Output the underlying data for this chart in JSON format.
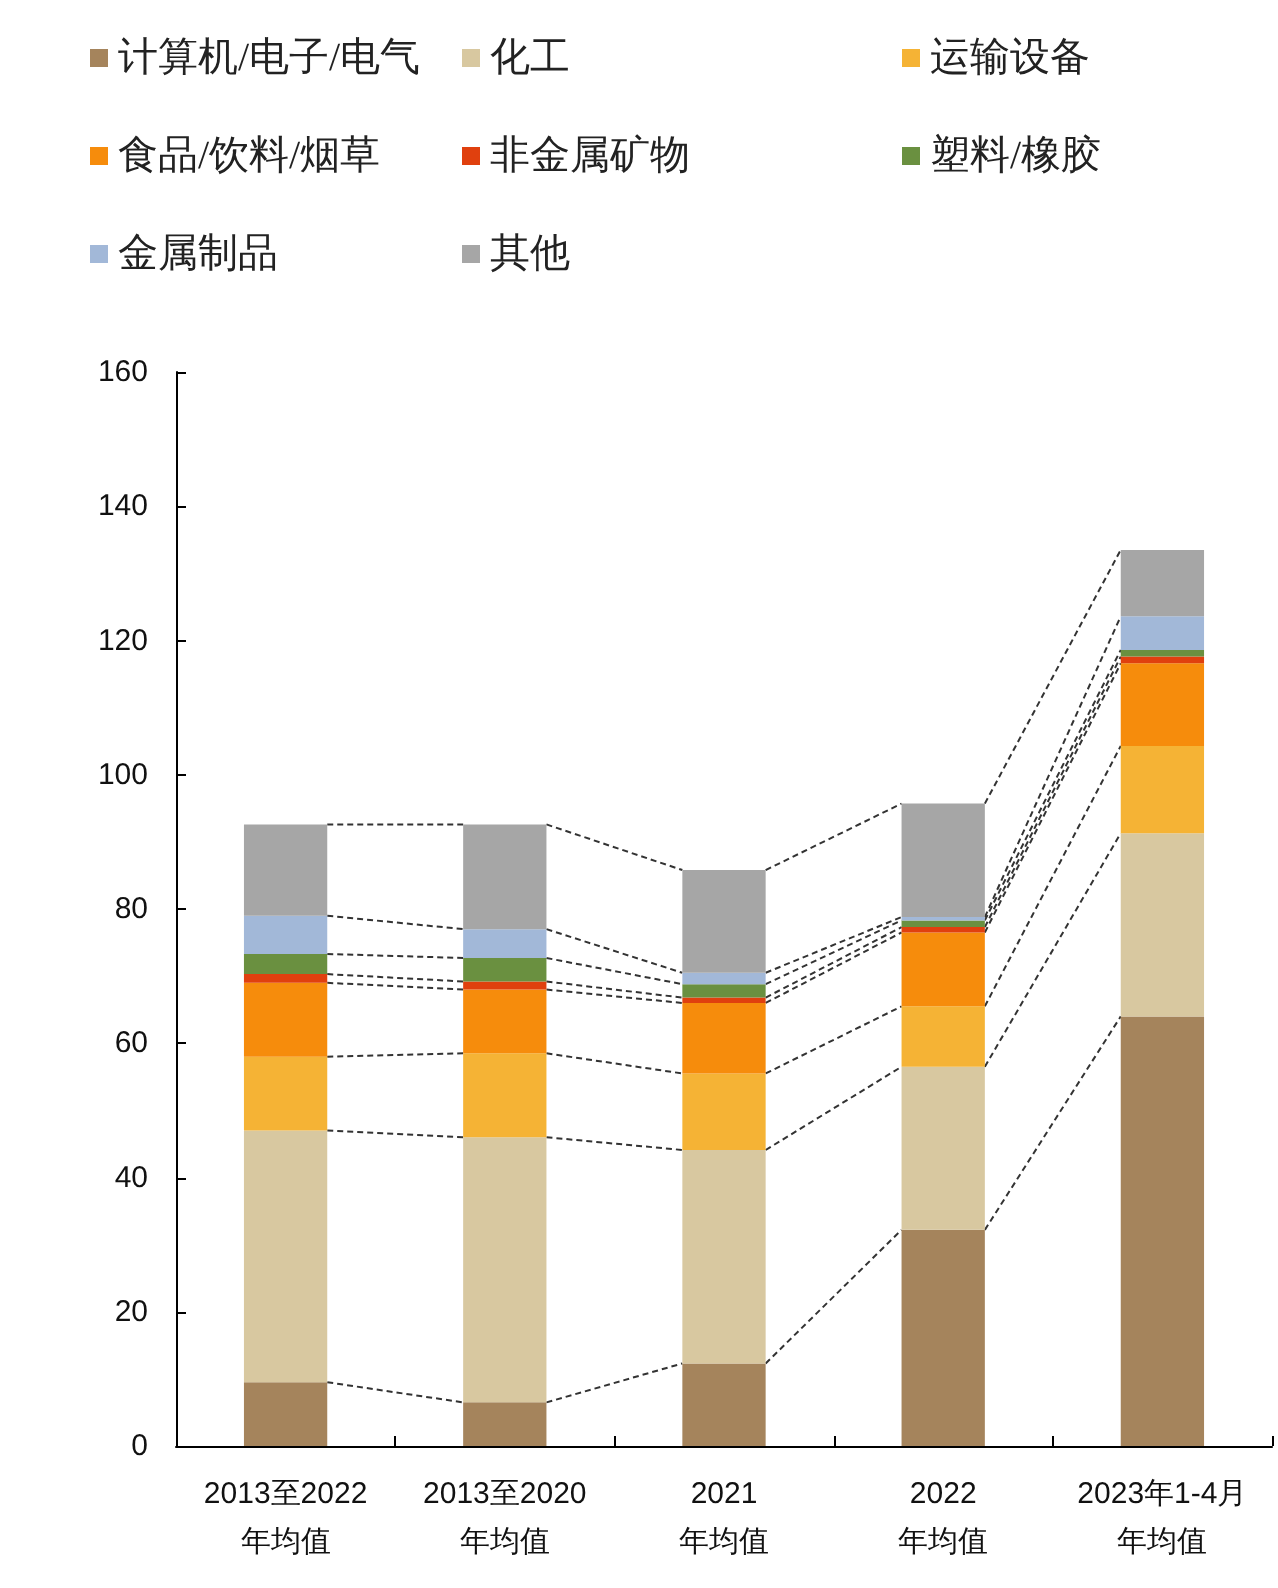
{
  "chart_data": {
    "type": "bar",
    "stacked": true,
    "categories": [
      "2013至2022\n年均值",
      "2013至2020\n年均值",
      "2021\n年均值",
      "2022\n年均值",
      "2023年1-4月年均值"
    ],
    "series": [
      {
        "name": "计算机/电子/电气",
        "color": "#a5845c",
        "values": [
          9.5,
          6.5,
          12.3,
          32.2,
          64
        ]
      },
      {
        "name": "化工",
        "color": "#d8c8a0",
        "values": [
          37.5,
          39.5,
          31.8,
          24.3,
          27.3
        ]
      },
      {
        "name": "运输设备",
        "color": "#f5b335",
        "values": [
          11,
          12.5,
          11.4,
          9,
          13
        ]
      },
      {
        "name": "食品/饮料/烟草",
        "color": "#f68c0c",
        "values": [
          11,
          9.5,
          10.5,
          11,
          12.3
        ]
      },
      {
        "name": "非金属矿物",
        "color": "#e0400e",
        "values": [
          1.3,
          1.2,
          0.8,
          0.8,
          1
        ]
      },
      {
        "name": "塑料/橡胶",
        "color": "#6a9040",
        "values": [
          3,
          3.5,
          2,
          1,
          1
        ]
      },
      {
        "name": "金属制品",
        "color": "#a2b8d8",
        "values": [
          5.7,
          4.3,
          1.7,
          0.5,
          5
        ]
      },
      {
        "name": "其他",
        "color": "#a6a6a6",
        "values": [
          13.6,
          15.6,
          15.3,
          16.9,
          9.9
        ]
      }
    ],
    "ylim": [
      0,
      160
    ],
    "yticks": [
      0,
      20,
      40,
      60,
      80,
      100,
      120,
      140,
      160
    ],
    "grid": false,
    "legend": "top"
  }
}
